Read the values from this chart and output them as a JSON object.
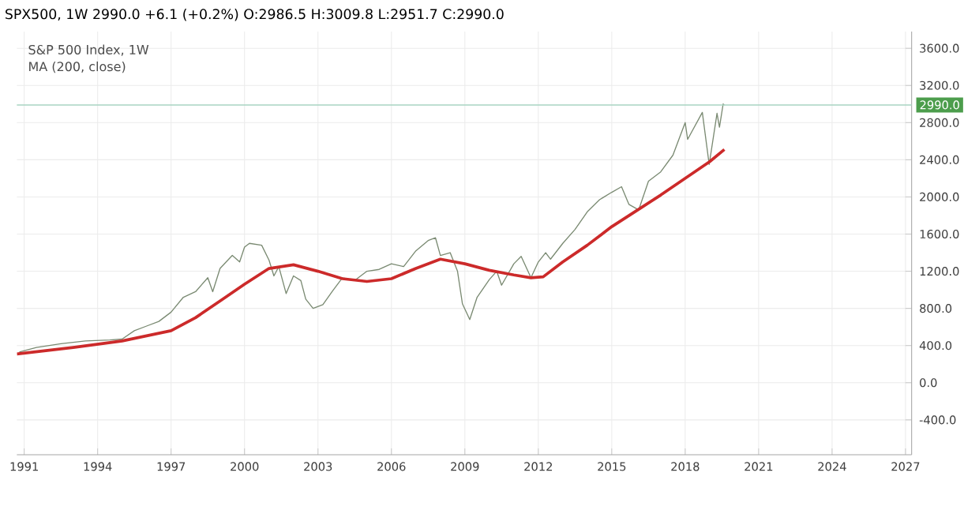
{
  "chart_data": {
    "type": "line",
    "title": "S&P 500 Index, 1W",
    "subtitle": "MA (200, close)",
    "annotations": [
      "SPX500, 1W  2990.0  +6.1 (+0.2%)  O:2986.5  H:3009.8  L:2951.7  C:2990.0"
    ],
    "series": [
      {
        "color": "#7a8a72",
        "x": [
          1990.8,
          1991.5,
          1992.5,
          1993.5,
          1994.5,
          1995.0,
          1995.5,
          1996.0,
          1996.5,
          1997.0,
          1997.5,
          1998.0,
          1998.5,
          1998.7,
          1999.0,
          1999.5,
          1999.8,
          2000.0,
          2000.2,
          2000.7,
          2001.0,
          2001.2,
          2001.4,
          2001.7,
          2002.0,
          2002.3,
          2002.5,
          2002.8,
          2003.2,
          2003.6,
          2004.0,
          2004.5,
          2005.0,
          2005.5,
          2006.0,
          2006.5,
          2007.0,
          2007.5,
          2007.8,
          2008.0,
          2008.4,
          2008.7,
          2008.9,
          2009.2,
          2009.5,
          2010.0,
          2010.3,
          2010.5,
          2011.0,
          2011.3,
          2011.7,
          2012.0,
          2012.3,
          2012.5,
          2013.0,
          2013.5,
          2014.0,
          2014.5,
          2015.0,
          2015.4,
          2015.7,
          2016.1,
          2016.5,
          2017.0,
          2017.5,
          2018.0,
          2018.1,
          2018.7,
          2018.98,
          2019.3,
          2019.4,
          2019.55,
          2019.6
        ],
        "values": [
          330,
          380,
          420,
          450,
          460,
          470,
          560,
          610,
          660,
          760,
          920,
          980,
          1130,
          980,
          1230,
          1370,
          1300,
          1460,
          1500,
          1480,
          1320,
          1150,
          1250,
          960,
          1150,
          1100,
          900,
          800,
          840,
          990,
          1130,
          1100,
          1200,
          1220,
          1280,
          1250,
          1420,
          1530,
          1560,
          1370,
          1400,
          1200,
          850,
          680,
          920,
          1110,
          1200,
          1050,
          1280,
          1360,
          1130,
          1300,
          1400,
          1330,
          1500,
          1650,
          1840,
          1970,
          2050,
          2110,
          1920,
          1860,
          2170,
          2270,
          2450,
          2800,
          2620,
          2910,
          2350,
          2900,
          2750,
          3000,
          2990
        ]
      },
      {
        "color": "#cc2a2a",
        "x": [
          1990.7,
          1993,
          1995,
          1997,
          1998,
          1999,
          2000,
          2001,
          2002,
          2003,
          2004,
          2005,
          2006,
          2007,
          2008,
          2009,
          2010,
          2011,
          2011.7,
          2012.2,
          2013,
          2014,
          2015,
          2016,
          2017,
          2018,
          2019,
          2019.6
        ],
        "values": [
          310,
          380,
          450,
          560,
          700,
          880,
          1060,
          1230,
          1270,
          1200,
          1120,
          1090,
          1120,
          1230,
          1330,
          1280,
          1210,
          1160,
          1130,
          1140,
          1300,
          1480,
          1680,
          1850,
          2020,
          2200,
          2380,
          2510
        ]
      }
    ],
    "xlim": [
      1990.7,
      2027.25
    ],
    "xticks": [
      1991,
      1994,
      1997,
      2000,
      2003,
      2006,
      2009,
      2012,
      2015,
      2018,
      2021,
      2024,
      2027
    ],
    "ylim": [
      -775,
      3780
    ],
    "yticks": [
      {
        "value": -400,
        "label": "-400.0"
      },
      {
        "value": 0,
        "label": "0.0"
      },
      {
        "value": 400,
        "label": "400.0"
      },
      {
        "value": 800,
        "label": "800.0"
      },
      {
        "value": 1200,
        "label": "1200.0"
      },
      {
        "value": 1600,
        "label": "1600.0"
      },
      {
        "value": 2000,
        "label": "2000.0"
      },
      {
        "value": 2400,
        "label": "2400.0"
      },
      {
        "value": 2800,
        "label": "2800.0"
      },
      {
        "value": 3200,
        "label": "3200.0"
      },
      {
        "value": 3600,
        "label": "3600.0"
      }
    ],
    "ref_lines": [
      {
        "axis": "y",
        "value": 2990,
        "label": "2990.0",
        "color": "#a8d5c2"
      }
    ],
    "grid": true,
    "line_style": "solid",
    "marker": "none"
  }
}
